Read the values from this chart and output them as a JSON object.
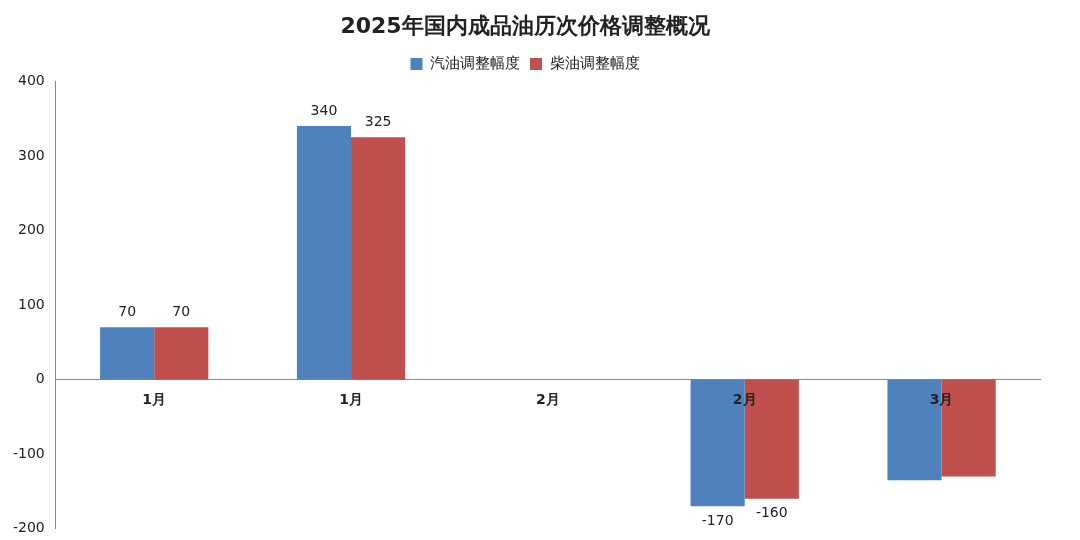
{
  "chart_data": {
    "type": "bar",
    "title": "2025年国内成品油历次价格调整概况",
    "categories": [
      "1月",
      "1月",
      "2月",
      "2月",
      "3月"
    ],
    "series": [
      {
        "name": "汽油调整幅度",
        "color": "#4f81bd",
        "values": [
          70,
          340,
          null,
          -170,
          -135
        ],
        "value_labels": [
          "70",
          "340",
          null,
          "-170",
          null
        ]
      },
      {
        "name": "柴油调整幅度",
        "color": "#c0504d",
        "values": [
          70,
          325,
          null,
          -160,
          -130
        ],
        "value_labels": [
          "70",
          "325",
          null,
          "-160",
          null
        ]
      }
    ],
    "ylim": [
      -200,
      400
    ],
    "yticks": [
      -200,
      -100,
      0,
      100,
      200,
      300,
      400
    ],
    "grid": false,
    "legend": "top"
  }
}
